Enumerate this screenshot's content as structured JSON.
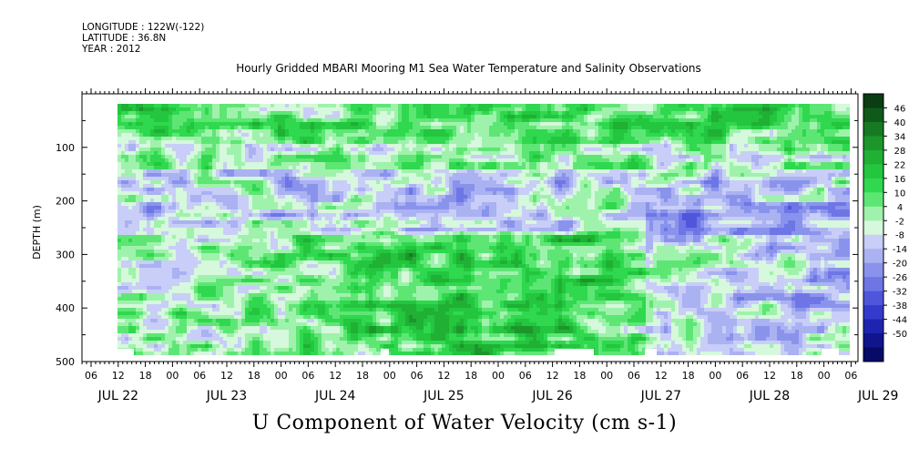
{
  "meta": {
    "longitude": "LONGITUDE : 122W(-122)",
    "latitude": "LATITUDE : 36.8N",
    "year": "YEAR : 2012"
  },
  "chart_data": {
    "type": "heatmap",
    "title": "Hourly Gridded MBARI Mooring M1 Sea Water Temperature and Salinity Observations",
    "xlabel": "U Component of Water Velocity (cm s-1)",
    "ylabel": "DEPTH (m)",
    "ylim": [
      500,
      0
    ],
    "y_ticks": [
      100,
      200,
      300,
      400,
      500
    ],
    "x_hour_ticks": [
      "06",
      "12",
      "18",
      "00",
      "06",
      "12",
      "18",
      "00",
      "06",
      "12",
      "18",
      "00",
      "06",
      "12",
      "18",
      "00",
      "06",
      "12",
      "18",
      "00",
      "06",
      "12",
      "18",
      "00",
      "06",
      "12",
      "18",
      "00",
      "06",
      "12",
      "18",
      "00",
      "06"
    ],
    "x_date_labels": [
      "JUL 22",
      "JUL 23",
      "JUL 24",
      "JUL 25",
      "JUL 26",
      "JUL 27",
      "JUL 28",
      "JUL 29"
    ],
    "colorbar_levels": [
      46,
      40,
      34,
      28,
      22,
      16,
      10,
      4,
      -2,
      -8,
      -14,
      -20,
      -26,
      -32,
      -38,
      -44,
      -50
    ],
    "colorbar_range": [
      -50,
      49
    ],
    "grid": false,
    "description_regions": [
      {
        "depth_range": [
          20,
          90
        ],
        "value_tendency": "mostly positive (green), mixed"
      },
      {
        "depth_range": [
          150,
          250
        ],
        "value_tendency": "mostly negative (blue)"
      },
      {
        "depth_range": [
          260,
          480
        ],
        "value_tendency": "positive (green) in middle days, negative at edges"
      }
    ]
  }
}
